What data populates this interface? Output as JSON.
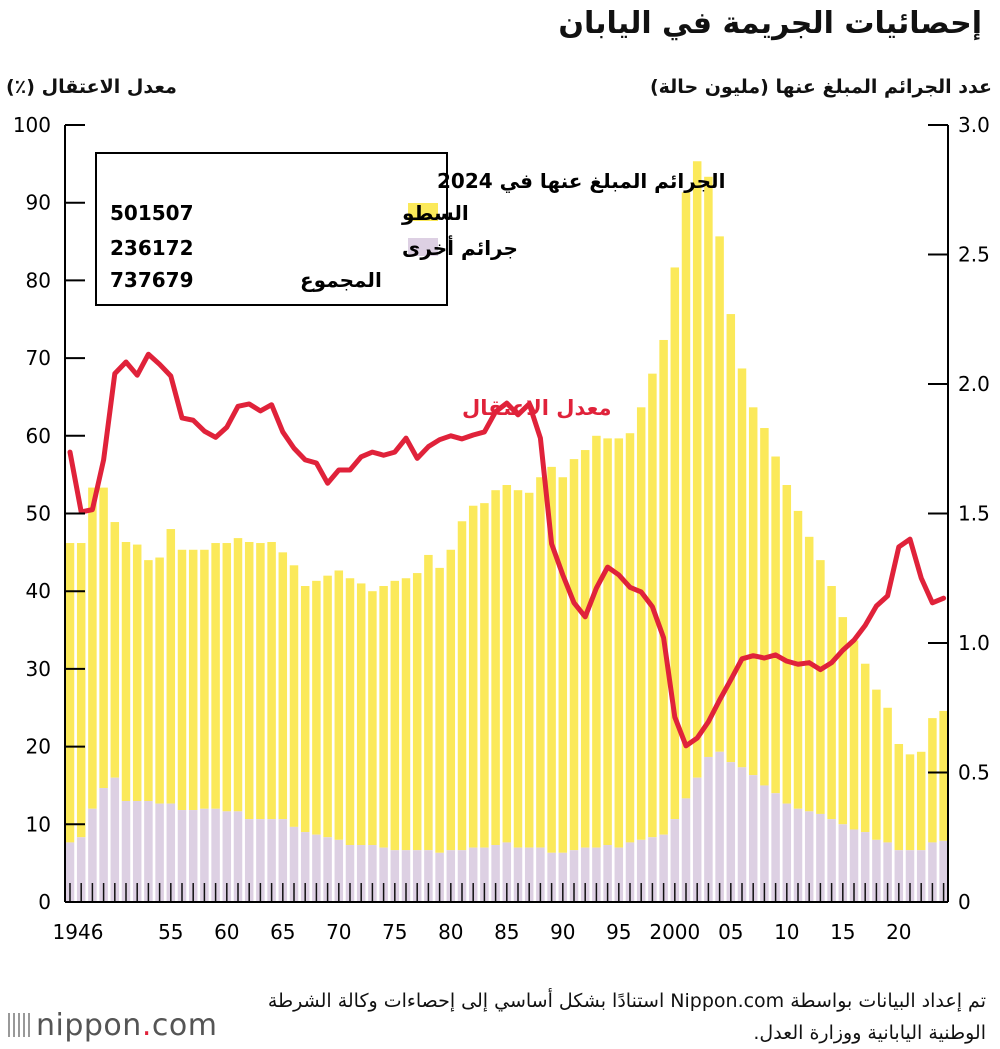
{
  "title": "إحصائيات الجريمة في اليابان",
  "source": "تم إعداد البيانات بواسطة Nippon.com استنادًا بشكل أساسي إلى إحصاءات وكالة الشرطة الوطنية اليابانية ووزارة العدل.",
  "logo": {
    "name": "nippon",
    "dot": ".",
    "suffix": "com"
  },
  "colors": {
    "burglary": "#fbe95a",
    "other": "#ddd0e3",
    "arrest_rate": "#e0223a"
  },
  "chart_data": {
    "type": "bar",
    "stacked": true,
    "title": "إحصائيات الجريمة في اليابان",
    "ylabel_left": "معدل الاعتقال (٪)",
    "ylabel_right": "عدد الجرائم المبلغ عنها (مليون حالة)",
    "ylim_left": [
      0,
      100
    ],
    "ylim_right": [
      0,
      3.0
    ],
    "yticks_left": [
      "0",
      "10",
      "20",
      "30",
      "40",
      "50",
      "60",
      "70",
      "80",
      "90",
      "100"
    ],
    "yticks_right": [
      "0",
      "0.5",
      "1.0",
      "1.5",
      "2.0",
      "2.5",
      "3.0"
    ],
    "xticks": [
      {
        "year": 1946,
        "label": "1946"
      },
      {
        "year": 1955,
        "label": "55"
      },
      {
        "year": 1960,
        "label": "60"
      },
      {
        "year": 1965,
        "label": "65"
      },
      {
        "year": 1970,
        "label": "70"
      },
      {
        "year": 1975,
        "label": "75"
      },
      {
        "year": 1980,
        "label": "80"
      },
      {
        "year": 1985,
        "label": "85"
      },
      {
        "year": 1990,
        "label": "90"
      },
      {
        "year": 1995,
        "label": "95"
      },
      {
        "year": 2000,
        "label": "2000"
      },
      {
        "year": 2005,
        "label": "05"
      },
      {
        "year": 2010,
        "label": "10"
      },
      {
        "year": 2015,
        "label": "15"
      },
      {
        "year": 2020,
        "label": "20"
      }
    ],
    "x_start": 1946,
    "totals_million": [
      1.386,
      1.386,
      1.6,
      1.6,
      1.467,
      1.39,
      1.38,
      1.32,
      1.33,
      1.44,
      1.36,
      1.36,
      1.36,
      1.386,
      1.386,
      1.405,
      1.39,
      1.386,
      1.39,
      1.35,
      1.3,
      1.22,
      1.24,
      1.26,
      1.28,
      1.25,
      1.23,
      1.2,
      1.22,
      1.24,
      1.25,
      1.27,
      1.34,
      1.29,
      1.36,
      1.47,
      1.53,
      1.54,
      1.59,
      1.61,
      1.59,
      1.58,
      1.64,
      1.68,
      1.64,
      1.71,
      1.745,
      1.8,
      1.79,
      1.79,
      1.81,
      1.91,
      2.04,
      2.17,
      2.45,
      2.74,
      2.86,
      2.8,
      2.57,
      2.27,
      2.06,
      1.91,
      1.83,
      1.72,
      1.61,
      1.51,
      1.41,
      1.32,
      1.22,
      1.1,
      1.01,
      0.92,
      0.82,
      0.75,
      0.61,
      0.57,
      0.58,
      0.71,
      0.737679
    ],
    "series": [
      {
        "name": "جرائم أخرى",
        "values_million": [
          0.23,
          0.25,
          0.36,
          0.44,
          0.48,
          0.39,
          0.39,
          0.39,
          0.38,
          0.38,
          0.355,
          0.355,
          0.36,
          0.36,
          0.35,
          0.35,
          0.32,
          0.32,
          0.32,
          0.32,
          0.29,
          0.27,
          0.26,
          0.25,
          0.24,
          0.22,
          0.22,
          0.22,
          0.21,
          0.2,
          0.2,
          0.2,
          0.2,
          0.19,
          0.2,
          0.2,
          0.21,
          0.21,
          0.22,
          0.23,
          0.21,
          0.21,
          0.21,
          0.19,
          0.19,
          0.2,
          0.21,
          0.21,
          0.22,
          0.21,
          0.23,
          0.24,
          0.25,
          0.26,
          0.32,
          0.4,
          0.48,
          0.56,
          0.58,
          0.54,
          0.52,
          0.49,
          0.45,
          0.42,
          0.38,
          0.36,
          0.35,
          0.34,
          0.32,
          0.3,
          0.28,
          0.27,
          0.24,
          0.23,
          0.2,
          0.2,
          0.2,
          0.23,
          0.236172
        ]
      },
      {
        "name": "السطو",
        "note_values": "total minus other"
      },
      {
        "name": "معدل الاعتقال",
        "type": "line",
        "axis": "left",
        "values_percent": [
          57.9,
          50.2,
          50.5,
          56.9,
          68.0,
          69.5,
          67.8,
          70.5,
          69.2,
          67.7,
          62.3,
          62.0,
          60.6,
          59.8,
          61.1,
          63.8,
          64.1,
          63.2,
          64.0,
          60.5,
          58.4,
          56.9,
          56.5,
          53.9,
          55.6,
          55.6,
          57.3,
          57.9,
          57.5,
          57.9,
          59.7,
          57.1,
          58.6,
          59.5,
          60.0,
          59.6,
          60.1,
          60.5,
          63.1,
          64.2,
          62.7,
          64.1,
          59.7,
          46.1,
          42.1,
          38.5,
          36.7,
          40.4,
          43.1,
          42.1,
          40.5,
          39.9,
          38.0,
          34.0,
          23.8,
          20.1,
          21.1,
          23.2,
          26.0,
          28.6,
          31.3,
          31.7,
          31.4,
          31.8,
          31.0,
          30.6,
          30.8,
          29.9,
          30.8,
          32.4,
          33.7,
          35.6,
          38.1,
          39.4,
          45.7,
          46.7,
          41.7,
          38.5,
          39.1
        ]
      }
    ],
    "line_label": "معدل الاعتقال",
    "legend": {
      "title": "الجرائم المبلغ عنها في 2024",
      "placement": "top-left",
      "items": [
        {
          "label": "السطو",
          "value": "501507",
          "swatch": "burglary"
        },
        {
          "label": "جرائم أخرى",
          "value": "236172",
          "swatch": "other"
        },
        {
          "label": "المجموع",
          "value": "737679",
          "swatch": ""
        }
      ]
    }
  }
}
